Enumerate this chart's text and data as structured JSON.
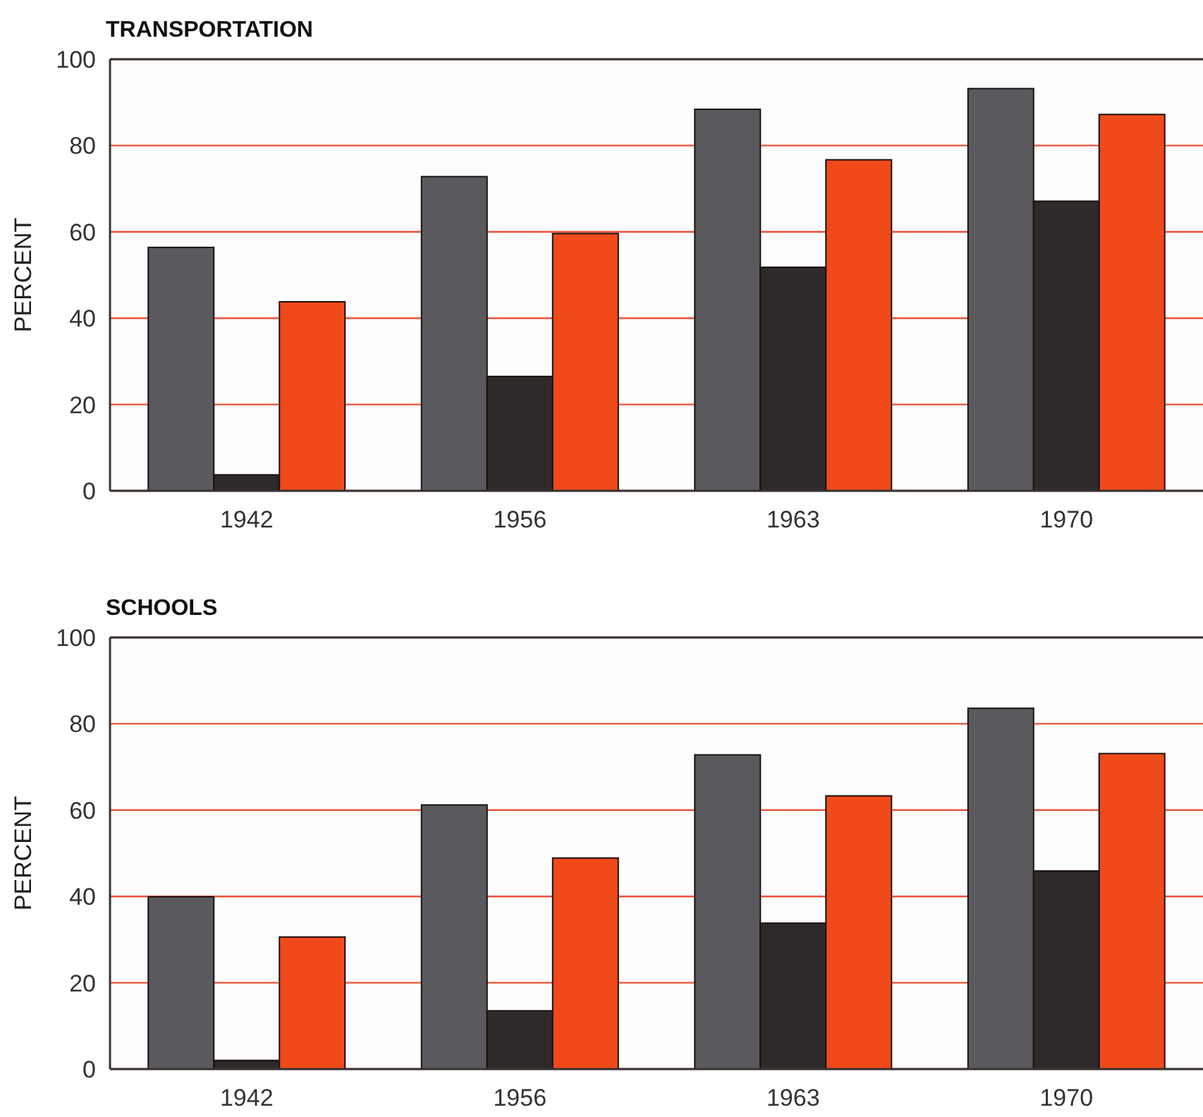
{
  "chart_data": [
    {
      "type": "bar",
      "title": "TRANSPORTATION",
      "ylabel": "PERCENT",
      "categories": [
        "1942",
        "1956",
        "1963",
        "1970"
      ],
      "series": [
        {
          "color": "#5a5a5e",
          "values": [
            56.4,
            72.8,
            88.4,
            93.2
          ]
        },
        {
          "color": "#2e2a2a",
          "values": [
            3.7,
            26.5,
            51.8,
            67.1
          ]
        },
        {
          "color": "#f04a1a",
          "values": [
            43.8,
            59.6,
            76.7,
            87.2
          ]
        }
      ],
      "ylim": [
        0,
        100
      ],
      "yticks": [
        0,
        20,
        40,
        60,
        80,
        100
      ],
      "grid": "y"
    },
    {
      "type": "bar",
      "title": "SCHOOLS",
      "ylabel": "PERCENT",
      "categories": [
        "1942",
        "1956",
        "1963",
        "1970"
      ],
      "series": [
        {
          "color": "#5a5a5e",
          "values": [
            39.9,
            61.2,
            72.8,
            83.6
          ]
        },
        {
          "color": "#2e2a2a",
          "values": [
            2,
            13.5,
            33.8,
            45.9
          ]
        },
        {
          "color": "#f04a1a",
          "values": [
            30.6,
            48.9,
            63.3,
            73.1
          ]
        }
      ],
      "ylim": [
        0,
        100
      ],
      "yticks": [
        0,
        20,
        40,
        60,
        80,
        100
      ],
      "grid": "y"
    }
  ]
}
